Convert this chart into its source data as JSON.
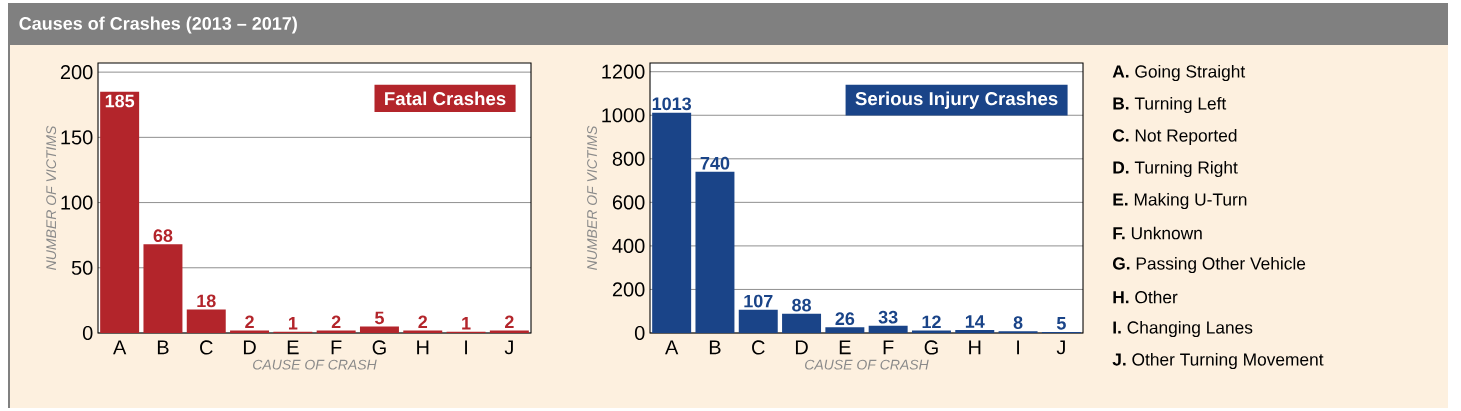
{
  "chart_data": [
    {
      "type": "bar",
      "title": "Fatal Crashes",
      "xlabel": "CAUSE OF CRASH",
      "ylabel": "NUMBER OF VICTIMS",
      "categories": [
        "A",
        "B",
        "C",
        "D",
        "E",
        "F",
        "G",
        "H",
        "I",
        "J"
      ],
      "values": [
        185,
        68,
        18,
        2,
        1,
        2,
        5,
        2,
        1,
        2
      ],
      "color": "#b3252b",
      "ylim": [
        0,
        207
      ],
      "yticks": [
        0,
        50,
        100,
        150,
        200
      ],
      "grid": "y",
      "data_labels": true
    },
    {
      "type": "bar",
      "title": "Serious Injury Crashes",
      "xlabel": "CAUSE OF CRASH",
      "ylabel": "NUMBER OF VICTIMS",
      "categories": [
        "A",
        "B",
        "C",
        "D",
        "E",
        "F",
        "G",
        "H",
        "I",
        "J"
      ],
      "values": [
        1013,
        740,
        107,
        88,
        26,
        33,
        12,
        14,
        8,
        5
      ],
      "color": "#1a4488",
      "ylim": [
        0,
        1240
      ],
      "yticks": [
        0,
        200,
        400,
        600,
        800,
        1000,
        1200
      ],
      "grid": "y",
      "data_labels": true
    },
    {
      "type": "other",
      "title": "Causes of Crashes (2013 – 2017)",
      "annotations": [
        "**A.** Going Straight",
        "**B.** Turning Left",
        "**C.** Not Reported",
        "**D.** Turning Right",
        "**E.** Making U-Turn",
        "**F.** Unknown",
        "**G.** Passing Other Vehicle",
        "**H.** Other",
        "**I.** Changing Lanes",
        "**J.** Other Turning Movement"
      ]
    }
  ]
}
